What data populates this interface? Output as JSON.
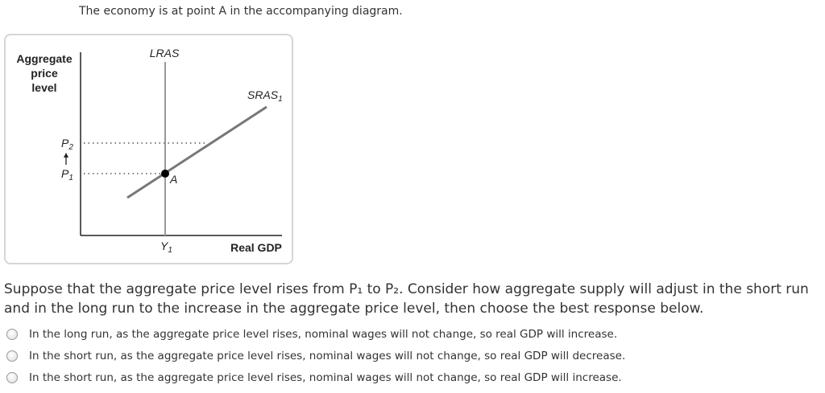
{
  "intro": "The economy is at point A in the accompanying diagram.",
  "diagram": {
    "y_axis_label": [
      "Aggregate",
      "price",
      "level"
    ],
    "x_axis_label": "Real GDP",
    "lras_label": "LRAS",
    "sras_label": "SRAS",
    "sras_sub": "1",
    "p2_label": "P",
    "p2_sub": "2",
    "p1_label": "P",
    "p1_sub": "1",
    "y1_label": "Y",
    "y1_sub": "1",
    "point_label": "A"
  },
  "question": "Suppose that the aggregate price level rises from P₁ to P₂. Consider how aggregate supply will adjust in the short run and in the long run to the increase in the aggregate price level, then choose the best response below.",
  "options": [
    "In the long run, as the aggregate price level rises, nominal wages will not change, so real GDP will increase.",
    "In the short run, as the aggregate price level rises, nominal wages will not change, so real GDP will decrease.",
    "In the short run, as the aggregate price level rises, nominal wages will not change, so real GDP will increase."
  ]
}
